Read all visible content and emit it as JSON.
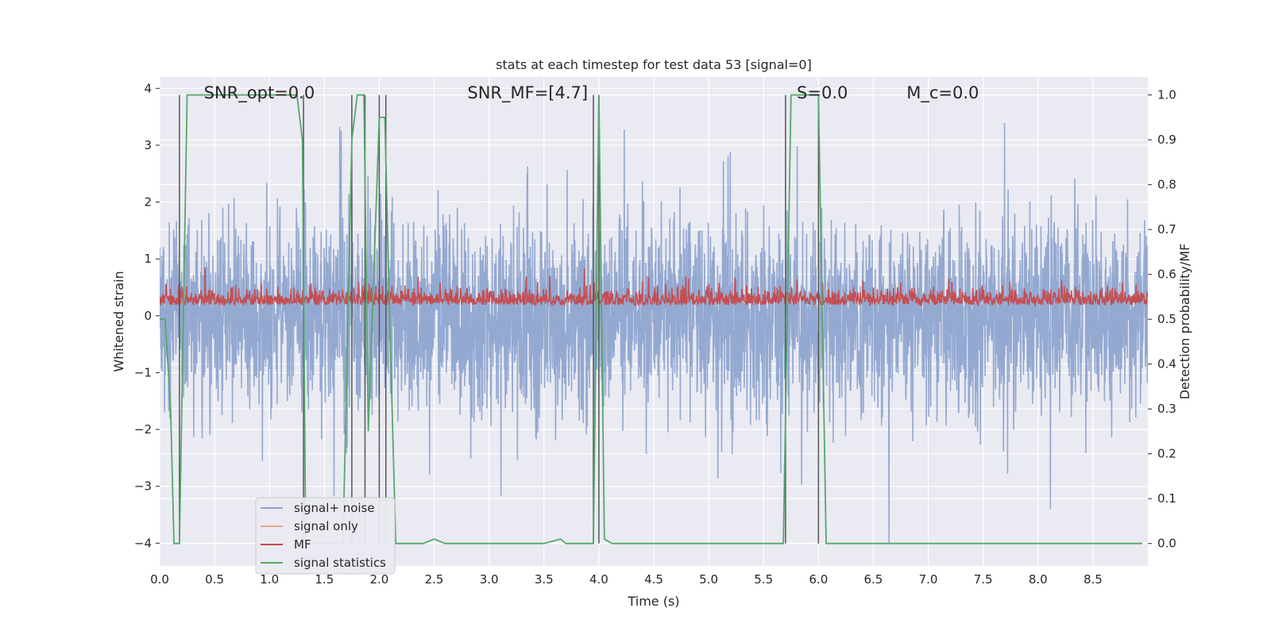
{
  "chart_data": {
    "type": "line",
    "title": "stats at each timestep for test data 53 [signal=0]",
    "xlabel": "Time (s)",
    "ylabel": "Whitened strain",
    "y2label": "Detection probability/MF",
    "xlim": [
      0,
      9.0
    ],
    "ylim": [
      -4.4,
      4.2
    ],
    "y2lim": [
      -0.05,
      1.04
    ],
    "xticks": [
      "0.0",
      "0.5",
      "1.0",
      "1.5",
      "2.0",
      "2.5",
      "3.0",
      "3.5",
      "4.0",
      "4.5",
      "5.0",
      "5.5",
      "6.0",
      "6.5",
      "7.0",
      "7.5",
      "8.0",
      "8.5"
    ],
    "yticks": [
      "−4",
      "−3",
      "−2",
      "−1",
      "0",
      "1",
      "2",
      "3",
      "4"
    ],
    "y2ticks": [
      "0.0",
      "0.1",
      "0.2",
      "0.3",
      "0.4",
      "0.5",
      "0.6",
      "0.7",
      "0.8",
      "0.9",
      "1.0"
    ],
    "grid": true,
    "legend_position": "lower-left",
    "annotations": [
      {
        "text": "SNR_opt=0.0",
        "x": 0.2
      },
      {
        "text": "SNR_MF=[4.7]",
        "x": 2.6
      },
      {
        "text": "S=0.0",
        "x": 5.6
      },
      {
        "text": "M_c=0.0",
        "x": 6.6
      }
    ],
    "series": [
      {
        "name": "signal+ noise",
        "color": "#8fa5cf",
        "kind": "noise",
        "axis": "left",
        "band_typical": [
          -1.8,
          1.8
        ],
        "band_extreme": [
          -4.0,
          3.8
        ]
      },
      {
        "name": "signal only",
        "color": "#e8a68f",
        "kind": "flat",
        "axis": "left",
        "value": 0.0
      },
      {
        "name": "MF",
        "color": "#c44e52",
        "kind": "mf",
        "axis": "left",
        "mean": 0.25,
        "range": [
          0.0,
          1.0
        ]
      },
      {
        "name": "signal statistics",
        "color": "#55a868",
        "kind": "line",
        "axis": "right",
        "x": [
          0.0,
          0.05,
          0.1,
          0.13,
          0.18,
          0.25,
          0.5,
          0.8,
          1.0,
          1.1,
          1.25,
          1.3,
          1.33,
          1.42,
          1.5,
          1.6,
          1.67,
          1.75,
          1.8,
          1.86,
          1.9,
          1.95,
          2.0,
          2.05,
          2.1,
          2.15,
          2.2,
          2.4,
          2.5,
          2.6,
          3.5,
          3.65,
          3.7,
          3.8,
          3.95,
          4.0,
          4.05,
          4.12,
          4.4,
          5.0,
          5.68,
          5.75,
          5.8,
          6.0,
          6.07,
          6.5,
          7.0,
          8.0,
          8.95
        ],
        "values": [
          0.5,
          0.5,
          0.3,
          0.0,
          0.0,
          1.0,
          1.0,
          1.0,
          1.0,
          1.0,
          1.0,
          0.9,
          0.0,
          0.0,
          0.0,
          0.0,
          0.0,
          0.9,
          1.0,
          1.0,
          0.25,
          0.6,
          0.95,
          0.95,
          0.45,
          0.0,
          0.0,
          0.0,
          0.01,
          0.0,
          0.0,
          0.01,
          0.0,
          0.0,
          0.0,
          1.0,
          0.01,
          0.0,
          0.0,
          0.0,
          0.0,
          1.0,
          1.0,
          1.0,
          0.0,
          0.0,
          0.0,
          0.0,
          0.0
        ]
      }
    ],
    "vlines": [
      0.18,
      1.31,
      1.75,
      1.87,
      2.0,
      2.06,
      3.95,
      4.0,
      5.7,
      6.0
    ]
  }
}
